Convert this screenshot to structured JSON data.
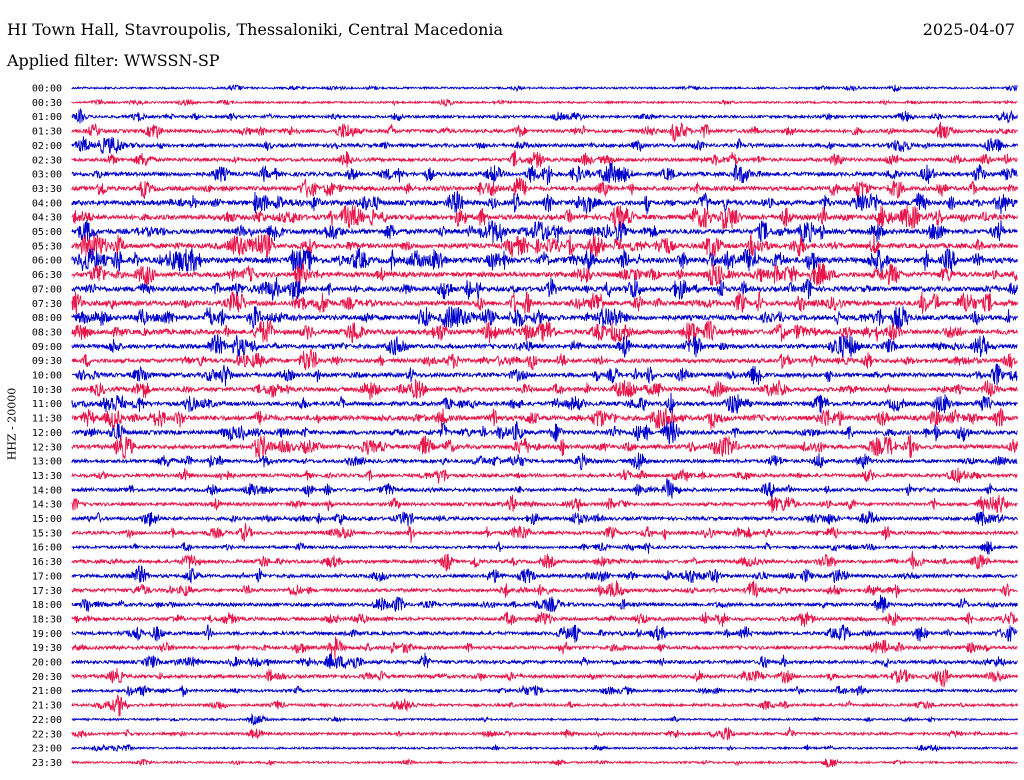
{
  "header": {
    "title": "HI Town Hall, Stavroupolis, Thessaloniki, Central Macedonia",
    "date": "2025-04-07",
    "filter": "Applied filter: WWSSN-SP"
  },
  "chart_data": {
    "type": "line",
    "ylabel": "HHZ - 20000",
    "rows": [
      "00:00",
      "00:30",
      "01:00",
      "01:30",
      "02:00",
      "02:30",
      "03:00",
      "03:30",
      "04:00",
      "04:30",
      "05:00",
      "05:30",
      "06:00",
      "06:30",
      "07:00",
      "07:30",
      "08:00",
      "08:30",
      "09:00",
      "09:30",
      "10:00",
      "10:30",
      "11:00",
      "11:30",
      "12:00",
      "12:30",
      "13:00",
      "13:30",
      "14:00",
      "14:30",
      "15:00",
      "15:30",
      "16:00",
      "16:30",
      "17:00",
      "17:30",
      "18:00",
      "18:30",
      "19:00",
      "19:30",
      "20:00",
      "20:30",
      "21:00",
      "21:30",
      "22:00",
      "22:30",
      "23:00",
      "23:30"
    ],
    "activity": [
      1,
      1,
      2,
      3,
      3,
      3,
      4,
      4,
      5,
      5,
      5,
      5,
      6,
      5,
      5,
      5,
      5,
      5,
      4,
      4,
      4,
      4,
      4,
      5,
      4,
      4,
      3,
      3,
      3,
      3,
      3,
      3,
      2,
      3,
      3,
      3,
      3,
      3,
      3,
      3,
      3,
      3,
      2,
      2,
      1,
      2,
      1,
      1
    ],
    "colors": [
      "#0000cc",
      "#e8164a"
    ]
  }
}
